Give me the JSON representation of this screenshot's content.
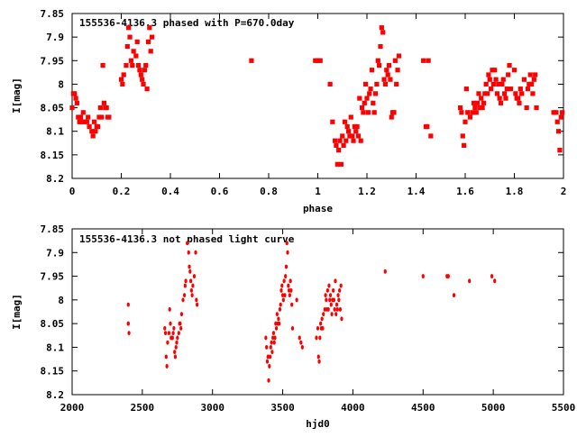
{
  "chart_data": [
    {
      "type": "scatter",
      "title": "155536-4136.3 phased with P=670.0day",
      "xlabel": "phase",
      "ylabel": "I[mag]",
      "xlim": [
        0,
        2
      ],
      "ylim": [
        7.85,
        8.2
      ],
      "y_inverted": true,
      "grid": false,
      "marker_color": "#ff0000",
      "x_tick_labels": [
        "0",
        "0.2",
        "0.4",
        "0.6",
        "0.8",
        "1",
        "1.2",
        "1.4",
        "1.6",
        "1.8",
        "2"
      ],
      "y_tick_labels": [
        "7.85",
        "7.9",
        "7.95",
        "8",
        "8.05",
        "8.1",
        "8.15",
        "8.2"
      ],
      "points": [
        [
          0.0,
          8.05
        ],
        [
          0.005,
          8.02
        ],
        [
          0.01,
          8.02
        ],
        [
          0.015,
          8.03
        ],
        [
          0.02,
          8.04
        ],
        [
          0.025,
          8.07
        ],
        [
          0.03,
          8.08
        ],
        [
          0.035,
          8.07
        ],
        [
          0.04,
          8.08
        ],
        [
          0.045,
          8.06
        ],
        [
          0.05,
          8.08
        ],
        [
          0.06,
          8.08
        ],
        [
          0.065,
          8.07
        ],
        [
          0.07,
          8.09
        ],
        [
          0.08,
          8.1
        ],
        [
          0.085,
          8.11
        ],
        [
          0.09,
          8.08
        ],
        [
          0.095,
          8.1
        ],
        [
          0.1,
          8.09
        ],
        [
          0.105,
          8.09
        ],
        [
          0.11,
          8.07
        ],
        [
          0.115,
          8.05
        ],
        [
          0.12,
          8.07
        ],
        [
          0.125,
          7.96
        ],
        [
          0.13,
          8.04
        ],
        [
          0.135,
          8.05
        ],
        [
          0.14,
          8.05
        ],
        [
          0.145,
          8.07
        ],
        [
          0.15,
          8.07
        ],
        [
          0.2,
          7.99
        ],
        [
          0.205,
          8.0
        ],
        [
          0.21,
          7.98
        ],
        [
          0.22,
          7.96
        ],
        [
          0.225,
          7.92
        ],
        [
          0.23,
          7.88
        ],
        [
          0.235,
          7.9
        ],
        [
          0.24,
          7.95
        ],
        [
          0.245,
          7.96
        ],
        [
          0.25,
          7.93
        ],
        [
          0.26,
          7.94
        ],
        [
          0.265,
          7.91
        ],
        [
          0.27,
          7.96
        ],
        [
          0.275,
          7.97
        ],
        [
          0.28,
          7.98
        ],
        [
          0.285,
          7.99
        ],
        [
          0.29,
          8.0
        ],
        [
          0.295,
          7.97
        ],
        [
          0.3,
          7.96
        ],
        [
          0.305,
          8.01
        ],
        [
          0.31,
          7.91
        ],
        [
          0.315,
          7.88
        ],
        [
          0.32,
          7.93
        ],
        [
          0.325,
          7.9
        ],
        [
          0.73,
          7.95
        ],
        [
          0.99,
          7.95
        ],
        [
          1.0,
          7.95
        ],
        [
          1.01,
          7.95
        ],
        [
          1.05,
          8.0
        ],
        [
          1.06,
          8.08
        ],
        [
          1.07,
          8.12
        ],
        [
          1.075,
          8.13
        ],
        [
          1.08,
          8.17
        ],
        [
          1.085,
          8.14
        ],
        [
          1.09,
          8.12
        ],
        [
          1.095,
          8.17
        ],
        [
          1.1,
          8.11
        ],
        [
          1.105,
          8.13
        ],
        [
          1.11,
          8.08
        ],
        [
          1.115,
          8.12
        ],
        [
          1.12,
          8.09
        ],
        [
          1.125,
          8.1
        ],
        [
          1.13,
          8.11
        ],
        [
          1.135,
          8.07
        ],
        [
          1.14,
          8.11
        ],
        [
          1.145,
          8.12
        ],
        [
          1.15,
          8.09
        ],
        [
          1.155,
          8.1
        ],
        [
          1.16,
          8.09
        ],
        [
          1.165,
          8.11
        ],
        [
          1.17,
          8.03
        ],
        [
          1.175,
          8.12
        ],
        [
          1.18,
          8.05
        ],
        [
          1.185,
          8.06
        ],
        [
          1.19,
          8.04
        ],
        [
          1.195,
          8.0
        ],
        [
          1.2,
          8.03
        ],
        [
          1.205,
          8.06
        ],
        [
          1.21,
          8.02
        ],
        [
          1.215,
          8.01
        ],
        [
          1.22,
          7.97
        ],
        [
          1.225,
          8.04
        ],
        [
          1.23,
          8.06
        ],
        [
          1.235,
          8.02
        ],
        [
          1.24,
          8.0
        ],
        [
          1.245,
          7.95
        ],
        [
          1.25,
          7.96
        ],
        [
          1.255,
          7.92
        ],
        [
          1.26,
          7.88
        ],
        [
          1.265,
          7.89
        ],
        [
          1.27,
          7.99
        ],
        [
          1.275,
          8.0
        ],
        [
          1.28,
          7.97
        ],
        [
          1.285,
          7.98
        ],
        [
          1.29,
          7.96
        ],
        [
          1.295,
          7.99
        ],
        [
          1.3,
          8.07
        ],
        [
          1.305,
          8.06
        ],
        [
          1.31,
          8.06
        ],
        [
          1.315,
          7.95
        ],
        [
          1.32,
          8.0
        ],
        [
          1.325,
          7.97
        ],
        [
          1.33,
          7.94
        ],
        [
          1.43,
          7.95
        ],
        [
          1.44,
          8.09
        ],
        [
          1.445,
          8.09
        ],
        [
          1.45,
          7.95
        ],
        [
          1.46,
          8.11
        ],
        [
          1.58,
          8.05
        ],
        [
          1.585,
          8.06
        ],
        [
          1.59,
          8.11
        ],
        [
          1.595,
          8.13
        ],
        [
          1.6,
          8.08
        ],
        [
          1.605,
          8.01
        ],
        [
          1.61,
          8.06
        ],
        [
          1.62,
          8.07
        ],
        [
          1.63,
          8.06
        ],
        [
          1.635,
          8.04
        ],
        [
          1.64,
          8.05
        ],
        [
          1.645,
          8.06
        ],
        [
          1.65,
          8.04
        ],
        [
          1.655,
          8.02
        ],
        [
          1.66,
          8.05
        ],
        [
          1.665,
          8.03
        ],
        [
          1.67,
          8.05
        ],
        [
          1.675,
          8.04
        ],
        [
          1.68,
          8.02
        ],
        [
          1.685,
          8.0
        ],
        [
          1.69,
          8.02
        ],
        [
          1.695,
          7.98
        ],
        [
          1.7,
          7.99
        ],
        [
          1.705,
          8.01
        ],
        [
          1.71,
          7.97
        ],
        [
          1.715,
          8.0
        ],
        [
          1.72,
          7.97
        ],
        [
          1.725,
          7.99
        ],
        [
          1.73,
          8.02
        ],
        [
          1.735,
          8.0
        ],
        [
          1.74,
          8.03
        ],
        [
          1.745,
          8.04
        ],
        [
          1.75,
          8.0
        ],
        [
          1.755,
          7.99
        ],
        [
          1.76,
          8.02
        ],
        [
          1.765,
          8.03
        ],
        [
          1.77,
          8.01
        ],
        [
          1.775,
          7.98
        ],
        [
          1.78,
          7.96
        ],
        [
          1.785,
          8.01
        ],
        [
          1.8,
          7.97
        ],
        [
          1.805,
          8.02
        ],
        [
          1.81,
          8.03
        ],
        [
          1.815,
          8.03
        ],
        [
          1.82,
          8.04
        ],
        [
          1.825,
          8.01
        ],
        [
          1.83,
          8.02
        ],
        [
          1.84,
          7.99
        ],
        [
          1.85,
          8.05
        ],
        [
          1.855,
          8.01
        ],
        [
          1.86,
          8.0
        ],
        [
          1.865,
          7.98
        ],
        [
          1.87,
          8.0
        ],
        [
          1.875,
          8.02
        ],
        [
          1.88,
          7.99
        ],
        [
          1.885,
          7.98
        ],
        [
          1.89,
          8.05
        ],
        [
          1.96,
          8.06
        ],
        [
          1.97,
          8.06
        ],
        [
          1.975,
          8.08
        ],
        [
          1.98,
          8.1
        ],
        [
          1.985,
          8.14
        ],
        [
          1.99,
          8.07
        ],
        [
          1.995,
          8.06
        ]
      ]
    },
    {
      "type": "scatter",
      "title": "155536-4136.3 not phased light curve",
      "xlabel": "hjd0",
      "ylabel": "I[mag]",
      "xlim": [
        2000,
        5500
      ],
      "ylim": [
        7.85,
        8.2
      ],
      "y_inverted": true,
      "grid": false,
      "marker_color": "#ff0000",
      "x_tick_labels": [
        "2000",
        "2500",
        "3000",
        "3500",
        "4000",
        "4500",
        "5000",
        "5500"
      ],
      "y_tick_labels": [
        "7.85",
        "7.9",
        "7.95",
        "8",
        "8.05",
        "8.1",
        "8.15",
        "8.2"
      ],
      "points": [
        [
          2400,
          8.01
        ],
        [
          2400,
          8.05
        ],
        [
          2400,
          8.05
        ],
        [
          2405,
          8.07
        ],
        [
          2660,
          8.06
        ],
        [
          2665,
          8.07
        ],
        [
          2670,
          8.12
        ],
        [
          2675,
          8.14
        ],
        [
          2680,
          8.09
        ],
        [
          2690,
          8.07
        ],
        [
          2695,
          8.02
        ],
        [
          2700,
          8.05
        ],
        [
          2705,
          8.08
        ],
        [
          2710,
          8.08
        ],
        [
          2715,
          8.08
        ],
        [
          2720,
          8.07
        ],
        [
          2725,
          8.06
        ],
        [
          2730,
          8.11
        ],
        [
          2735,
          8.12
        ],
        [
          2740,
          8.1
        ],
        [
          2745,
          8.09
        ],
        [
          2750,
          8.08
        ],
        [
          2760,
          8.07
        ],
        [
          2765,
          8.05
        ],
        [
          2770,
          8.05
        ],
        [
          2775,
          8.06
        ],
        [
          2780,
          8.03
        ],
        [
          2790,
          8.0
        ],
        [
          2800,
          7.99
        ],
        [
          2805,
          7.97
        ],
        [
          2810,
          7.96
        ],
        [
          2820,
          7.88
        ],
        [
          2830,
          7.9
        ],
        [
          2835,
          7.93
        ],
        [
          2840,
          7.94
        ],
        [
          2845,
          7.96
        ],
        [
          2850,
          7.98
        ],
        [
          2855,
          7.99
        ],
        [
          2860,
          7.97
        ],
        [
          2870,
          7.95
        ],
        [
          2880,
          7.9
        ],
        [
          2885,
          8.0
        ],
        [
          2890,
          8.01
        ],
        [
          3380,
          8.08
        ],
        [
          3385,
          8.1
        ],
        [
          3390,
          8.13
        ],
        [
          3395,
          8.12
        ],
        [
          3400,
          8.17
        ],
        [
          3405,
          8.14
        ],
        [
          3410,
          8.12
        ],
        [
          3415,
          8.1
        ],
        [
          3420,
          8.09
        ],
        [
          3425,
          8.11
        ],
        [
          3430,
          8.08
        ],
        [
          3435,
          8.07
        ],
        [
          3440,
          8.09
        ],
        [
          3445,
          8.08
        ],
        [
          3450,
          8.05
        ],
        [
          3455,
          8.06
        ],
        [
          3460,
          8.03
        ],
        [
          3465,
          8.05
        ],
        [
          3470,
          8.04
        ],
        [
          3475,
          8.05
        ],
        [
          3480,
          8.02
        ],
        [
          3485,
          8.01
        ],
        [
          3490,
          7.98
        ],
        [
          3495,
          7.97
        ],
        [
          3500,
          7.99
        ],
        [
          3505,
          8.0
        ],
        [
          3510,
          7.96
        ],
        [
          3515,
          7.99
        ],
        [
          3520,
          7.95
        ],
        [
          3525,
          7.93
        ],
        [
          3530,
          7.88
        ],
        [
          3535,
          7.9
        ],
        [
          3540,
          7.97
        ],
        [
          3545,
          7.98
        ],
        [
          3550,
          7.99
        ],
        [
          3555,
          7.96
        ],
        [
          3560,
          7.98
        ],
        [
          3565,
          8.01
        ],
        [
          3570,
          8.06
        ],
        [
          3600,
          8.0
        ],
        [
          3620,
          8.08
        ],
        [
          3630,
          8.09
        ],
        [
          3640,
          8.1
        ],
        [
          3740,
          8.08
        ],
        [
          3750,
          8.06
        ],
        [
          3755,
          8.12
        ],
        [
          3760,
          8.13
        ],
        [
          3765,
          8.08
        ],
        [
          3770,
          8.05
        ],
        [
          3775,
          8.06
        ],
        [
          3780,
          8.04
        ],
        [
          3785,
          8.06
        ],
        [
          3790,
          8.03
        ],
        [
          3800,
          8.02
        ],
        [
          3805,
          7.99
        ],
        [
          3810,
          8.0
        ],
        [
          3815,
          8.02
        ],
        [
          3820,
          7.98
        ],
        [
          3825,
          8.02
        ],
        [
          3830,
          7.97
        ],
        [
          3835,
          8.0
        ],
        [
          3840,
          7.99
        ],
        [
          3845,
          8.01
        ],
        [
          3850,
          8.03
        ],
        [
          3855,
          8.0
        ],
        [
          3860,
          7.98
        ],
        [
          3865,
          8.0
        ],
        [
          3870,
          8.02
        ],
        [
          3875,
          7.96
        ],
        [
          3880,
          8.03
        ],
        [
          3885,
          8.01
        ],
        [
          3890,
          8.02
        ],
        [
          3895,
          7.99
        ],
        [
          3900,
          8.0
        ],
        [
          3905,
          7.98
        ],
        [
          3910,
          8.02
        ],
        [
          3915,
          7.97
        ],
        [
          3920,
          8.04
        ],
        [
          4230,
          7.94
        ],
        [
          4500,
          7.95
        ],
        [
          4670,
          7.95
        ],
        [
          4680,
          7.95
        ],
        [
          4720,
          7.99
        ],
        [
          4830,
          7.96
        ],
        [
          4990,
          7.95
        ],
        [
          5010,
          7.96
        ]
      ]
    }
  ]
}
